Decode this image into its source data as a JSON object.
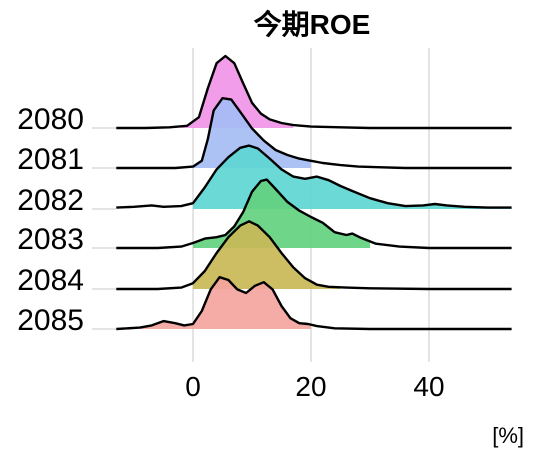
{
  "chart_data": {
    "type": "ridgeline",
    "title": "今期ROE",
    "xlabel": "[%]",
    "ylabel": "",
    "xlim": [
      -13,
      54
    ],
    "x_ticks": [
      0,
      20,
      40
    ],
    "x_tick_labels": [
      "0",
      "20",
      "40"
    ],
    "grid": "vertical",
    "legend": "none",
    "series": [
      {
        "label": "2080",
        "color": "#f095e8",
        "fill_range": [
          -2,
          17
        ],
        "points": [
          [
            -13,
            0
          ],
          [
            -8,
            0
          ],
          [
            -4,
            0.01
          ],
          [
            -1,
            0.03
          ],
          [
            1,
            0.15
          ],
          [
            2.5,
            0.55
          ],
          [
            4,
            0.9
          ],
          [
            5.5,
            1.0
          ],
          [
            7,
            0.9
          ],
          [
            8.5,
            0.62
          ],
          [
            10,
            0.35
          ],
          [
            11.5,
            0.2
          ],
          [
            13,
            0.12
          ],
          [
            15,
            0.07
          ],
          [
            17,
            0.04
          ],
          [
            20,
            0.02
          ],
          [
            25,
            0.01
          ],
          [
            30,
            0
          ],
          [
            54,
            0
          ]
        ]
      },
      {
        "label": "2081",
        "color": "#a5bdf4",
        "fill_range": [
          0,
          20
        ],
        "points": [
          [
            -13,
            0
          ],
          [
            -3,
            0
          ],
          [
            0,
            0.02
          ],
          [
            1.5,
            0.1
          ],
          [
            2.5,
            0.4
          ],
          [
            3.5,
            0.8
          ],
          [
            5,
            0.97
          ],
          [
            6.5,
            0.95
          ],
          [
            8,
            0.78
          ],
          [
            10,
            0.55
          ],
          [
            12,
            0.38
          ],
          [
            14,
            0.25
          ],
          [
            16,
            0.18
          ],
          [
            18,
            0.13
          ],
          [
            20,
            0.1
          ],
          [
            22,
            0.07
          ],
          [
            25,
            0.04
          ],
          [
            28,
            0.02
          ],
          [
            32,
            0.01
          ],
          [
            36,
            0
          ],
          [
            54,
            0
          ]
        ]
      },
      {
        "label": "2082",
        "color": "#5ed6d2",
        "fill_range": [
          0,
          54
        ],
        "points": [
          [
            -13,
            0.02
          ],
          [
            -10,
            0.03
          ],
          [
            -7,
            0.05
          ],
          [
            -5,
            0.03
          ],
          [
            -2,
            0.04
          ],
          [
            0,
            0.08
          ],
          [
            2,
            0.3
          ],
          [
            4,
            0.55
          ],
          [
            6,
            0.72
          ],
          [
            8,
            0.85
          ],
          [
            9.5,
            0.88
          ],
          [
            11,
            0.84
          ],
          [
            13,
            0.7
          ],
          [
            15,
            0.55
          ],
          [
            17,
            0.45
          ],
          [
            19,
            0.42
          ],
          [
            21,
            0.45
          ],
          [
            23,
            0.4
          ],
          [
            25,
            0.32
          ],
          [
            27,
            0.25
          ],
          [
            30,
            0.15
          ],
          [
            33,
            0.08
          ],
          [
            36,
            0.04
          ],
          [
            39,
            0.05
          ],
          [
            41,
            0.07
          ],
          [
            43,
            0.05
          ],
          [
            46,
            0.03
          ],
          [
            50,
            0.02
          ],
          [
            54,
            0.02
          ]
        ]
      },
      {
        "label": "2083",
        "color": "#63d17f",
        "fill_range": [
          0,
          30
        ],
        "points": [
          [
            -13,
            0
          ],
          [
            -6,
            0
          ],
          [
            -2,
            0.02
          ],
          [
            0,
            0.07
          ],
          [
            2,
            0.13
          ],
          [
            4,
            0.15
          ],
          [
            5.5,
            0.18
          ],
          [
            7,
            0.3
          ],
          [
            8.5,
            0.5
          ],
          [
            10,
            0.78
          ],
          [
            11.5,
            0.93
          ],
          [
            12.5,
            0.95
          ],
          [
            14,
            0.82
          ],
          [
            16,
            0.64
          ],
          [
            18,
            0.52
          ],
          [
            20,
            0.43
          ],
          [
            22,
            0.35
          ],
          [
            24,
            0.22
          ],
          [
            26,
            0.18
          ],
          [
            27,
            0.2
          ],
          [
            28.5,
            0.14
          ],
          [
            31,
            0.06
          ],
          [
            35,
            0.02
          ],
          [
            40,
            0
          ],
          [
            54,
            0
          ]
        ]
      },
      {
        "label": "2084",
        "color": "#c9b857",
        "fill_range": [
          0,
          25
        ],
        "points": [
          [
            -13,
            0
          ],
          [
            -6,
            0
          ],
          [
            -2,
            0.02
          ],
          [
            0,
            0.08
          ],
          [
            2,
            0.25
          ],
          [
            4,
            0.5
          ],
          [
            6,
            0.72
          ],
          [
            8,
            0.88
          ],
          [
            9.5,
            0.94
          ],
          [
            11,
            0.88
          ],
          [
            13,
            0.72
          ],
          [
            15,
            0.5
          ],
          [
            17,
            0.3
          ],
          [
            19,
            0.15
          ],
          [
            21,
            0.06
          ],
          [
            23,
            0.03
          ],
          [
            26,
            0.02
          ],
          [
            30,
            0.01
          ],
          [
            40,
            0
          ],
          [
            54,
            0
          ]
        ]
      },
      {
        "label": "2085",
        "color": "#f4a49e",
        "fill_range": [
          -9,
          20
        ],
        "points": [
          [
            -13,
            0
          ],
          [
            -9,
            0.02
          ],
          [
            -7,
            0.05
          ],
          [
            -5,
            0.11
          ],
          [
            -3,
            0.08
          ],
          [
            -1.5,
            0.05
          ],
          [
            0,
            0.07
          ],
          [
            1.5,
            0.25
          ],
          [
            3,
            0.55
          ],
          [
            4.5,
            0.72
          ],
          [
            6,
            0.68
          ],
          [
            7.5,
            0.55
          ],
          [
            9,
            0.5
          ],
          [
            10.5,
            0.6
          ],
          [
            12,
            0.65
          ],
          [
            13.5,
            0.55
          ],
          [
            15,
            0.32
          ],
          [
            16.5,
            0.15
          ],
          [
            18,
            0.08
          ],
          [
            19.5,
            0.07
          ],
          [
            21,
            0.04
          ],
          [
            24,
            0.01
          ],
          [
            30,
            0
          ],
          [
            54,
            0
          ]
        ]
      }
    ]
  }
}
